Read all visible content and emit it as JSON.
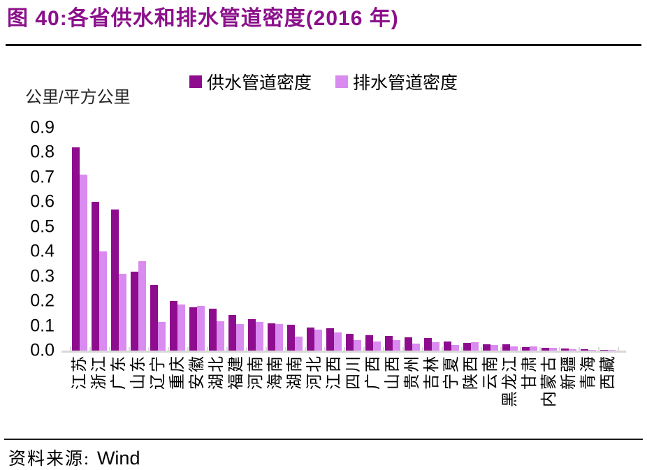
{
  "figure": {
    "title": "图 40:各省供水和排水管道密度(2016 年)",
    "source_label": "资料来源:",
    "source_value": "Wind"
  },
  "chart_data": {
    "type": "bar",
    "title": "各省供水和排水管道密度(2016 年)",
    "unit_label": "公里/平方公里",
    "ylabel": "公里/平方公里",
    "ylim": [
      0,
      0.9
    ],
    "y_ticks": [
      0.9,
      0.8,
      0.7,
      0.6,
      0.5,
      0.4,
      0.3,
      0.2,
      0.1,
      0.0
    ],
    "grid": false,
    "legend_position": "top",
    "categories": [
      "江苏",
      "浙江",
      "广东",
      "山东",
      "辽宁",
      "重庆",
      "安徽",
      "湖北",
      "福建",
      "河南",
      "海南",
      "湖南",
      "河北",
      "江西",
      "四川",
      "广西",
      "山西",
      "贵州",
      "吉林",
      "宁夏",
      "陕西",
      "云南",
      "黑龙江",
      "甘肃",
      "内蒙古",
      "新疆",
      "青海",
      "西藏"
    ],
    "series": [
      {
        "name": "供水管道密度",
        "color": "#8E0D8E",
        "values": [
          0.82,
          0.6,
          0.57,
          0.32,
          0.265,
          0.2,
          0.175,
          0.17,
          0.145,
          0.127,
          0.11,
          0.105,
          0.092,
          0.09,
          0.068,
          0.063,
          0.06,
          0.054,
          0.05,
          0.038,
          0.031,
          0.026,
          0.024,
          0.015,
          0.01,
          0.008,
          0.005,
          0.004
        ]
      },
      {
        "name": "排水管道密度",
        "color": "#D98BF0",
        "values": [
          0.71,
          0.4,
          0.31,
          0.36,
          0.117,
          0.185,
          0.18,
          0.118,
          0.107,
          0.117,
          0.108,
          0.056,
          0.086,
          0.073,
          0.043,
          0.037,
          0.043,
          0.027,
          0.034,
          0.023,
          0.033,
          0.023,
          0.017,
          0.016,
          0.012,
          0.005,
          0.003,
          0.002
        ]
      }
    ]
  },
  "colors": {
    "title": "#8B108B",
    "axis_line": "#D9D9D9",
    "text": "#000000"
  }
}
